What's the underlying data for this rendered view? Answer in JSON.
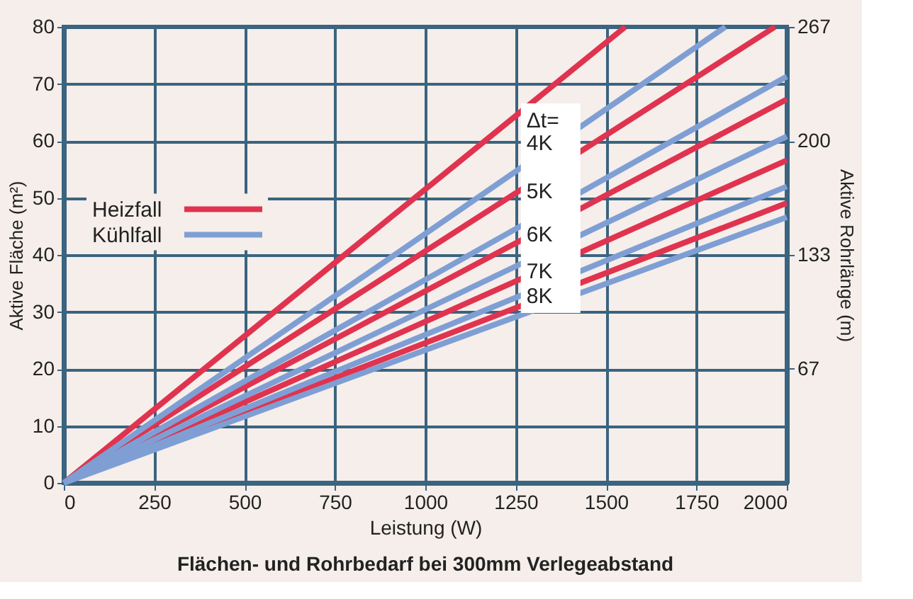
{
  "chart_data": {
    "type": "line",
    "title": "Flächen- und Rohrbedarf bei 300mm Verlegeabstand",
    "xlabel": "Leistung (W)",
    "ylabel": "Aktive Fläche (m²)",
    "y2label": "Aktive Rohrlänge (m)",
    "series": [
      {
        "name": "Heizfall",
        "color": "#e0334f",
        "x": [
          0,
          1553
        ],
        "values": [
          0,
          80
        ]
      },
      {
        "color": "#e0334f",
        "x": [
          0,
          1967
        ],
        "values": [
          0,
          80
        ]
      },
      {
        "color": "#e0334f",
        "x": [
          0,
          2000
        ],
        "values": [
          0,
          67.3
        ]
      },
      {
        "color": "#e0334f",
        "x": [
          0,
          2000
        ],
        "values": [
          0,
          56.6
        ]
      },
      {
        "color": "#e0334f",
        "x": [
          0,
          2000
        ],
        "values": [
          0,
          49.1
        ]
      },
      {
        "name": "Kühlfall",
        "color": "#7f9fd4",
        "x": [
          0,
          1830
        ],
        "values": [
          0,
          80
        ]
      },
      {
        "color": "#7f9fd4",
        "x": [
          0,
          2000
        ],
        "values": [
          0,
          71.3
        ]
      },
      {
        "color": "#7f9fd4",
        "x": [
          0,
          2000
        ],
        "values": [
          0,
          60.8
        ]
      },
      {
        "color": "#7f9fd4",
        "x": [
          0,
          2000
        ],
        "values": [
          0,
          52.0
        ]
      },
      {
        "color": "#7f9fd4",
        "x": [
          0,
          2000
        ],
        "values": [
          0,
          46.6
        ]
      }
    ],
    "xlim": [
      0,
      2000
    ],
    "xticks": [
      0,
      250,
      500,
      750,
      {
        "value": 1000,
        "label": "1000"
      },
      {
        "value": 1250,
        "label": "1250"
      },
      {
        "value": 1500,
        "label": "1500"
      },
      {
        "value": 1750,
        "label": "1750"
      },
      {
        "value": 2000,
        "label": "2000"
      }
    ],
    "ylim": [
      0,
      80
    ],
    "yticks": [
      0,
      10,
      20,
      30,
      40,
      50,
      60,
      70,
      80
    ],
    "y2lim": [
      0,
      266.7
    ],
    "y2ticks": [
      {
        "value": 66.7,
        "label": "67"
      },
      {
        "value": 133.3,
        "label": "133"
      },
      {
        "value": 200,
        "label": "200"
      },
      {
        "value": 266.7,
        "label": "267"
      }
    ],
    "annotations": [
      "Δt=",
      "4K",
      "5K",
      "6K",
      "7K",
      "8K"
    ],
    "grid": true,
    "legend": "left",
    "line_style": "solid",
    "marker": "none"
  }
}
